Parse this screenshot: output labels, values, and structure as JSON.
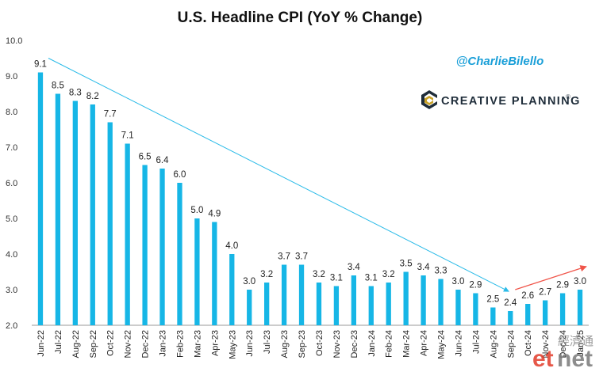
{
  "chart_data": {
    "type": "bar",
    "title": "U.S. Headline CPI (YoY % Change)",
    "categories": [
      "Jun-22",
      "Jul-22",
      "Aug-22",
      "Sep-22",
      "Oct-22",
      "Nov-22",
      "Dec-22",
      "Jan-23",
      "Feb-23",
      "Mar-23",
      "Apr-23",
      "May-23",
      "Jun-23",
      "Jul-23",
      "Aug-23",
      "Sep-23",
      "Oct-23",
      "Nov-23",
      "Dec-23",
      "Jan-24",
      "Feb-24",
      "Mar-24",
      "Apr-24",
      "May-24",
      "Jun-24",
      "Jul-24",
      "Aug-24",
      "Sep-24",
      "Oct-24",
      "Nov-24",
      "Dec-24",
      "Jan-25"
    ],
    "values": [
      9.1,
      8.5,
      8.3,
      8.2,
      7.7,
      7.1,
      6.5,
      6.4,
      6.0,
      5.0,
      4.9,
      4.0,
      3.0,
      3.2,
      3.7,
      3.7,
      3.2,
      3.1,
      3.4,
      3.1,
      3.2,
      3.5,
      3.4,
      3.3,
      3.0,
      2.9,
      2.5,
      2.4,
      2.6,
      2.7,
      2.9,
      3.0
    ],
    "data_labels": [
      "9.1",
      "8.5",
      "8.3",
      "8.2",
      "7.7",
      "7.1",
      "6.5",
      "6.4",
      "6.0",
      "5.0",
      "4.9",
      "4.0",
      "3.0",
      "3.2",
      "3.7",
      "3.7",
      "3.2",
      "3.1",
      "3.4",
      "3.1",
      "3.2",
      "3.5",
      "3.4",
      "3.3",
      "3.0",
      "2.9",
      "2.5",
      "2.4",
      "2.6",
      "2.7",
      "2.9",
      "3.0"
    ],
    "labeled": [
      true,
      true,
      true,
      true,
      true,
      true,
      true,
      true,
      true,
      true,
      true,
      true,
      true,
      true,
      true,
      true,
      true,
      true,
      true,
      true,
      true,
      true,
      true,
      true,
      true,
      true,
      true,
      true,
      true,
      true,
      true,
      true
    ],
    "ylim": [
      2.0,
      10.0
    ],
    "yticks": [
      "2.0",
      "3.0",
      "4.0",
      "5.0",
      "6.0",
      "7.0",
      "8.0",
      "9.0",
      "10.0"
    ],
    "xlabel": "",
    "ylabel": "",
    "grid": false,
    "bar_color": "#16b6e6",
    "trend_down": {
      "from_value": 9.5,
      "to_value": 2.95,
      "from_category": "Jun-22",
      "to_category": "Sep-24",
      "color": "#2bbbe8"
    },
    "trend_up": {
      "from_value": 3.0,
      "to_value": 3.65,
      "from_category": "Sep-24",
      "to_category": "Jan-25",
      "color": "#f0554a"
    }
  },
  "branding": {
    "handle": "@CharlieBilello",
    "company": "CREATIVE PLANNING",
    "company_suffix": "®",
    "handle_color": "#1a9fd8",
    "logo_colors": [
      "#1f2d3a",
      "#c9a227"
    ]
  },
  "watermark": {
    "et": "et",
    "net": "net",
    "chinese": "經濟通",
    "colors": [
      "#e23b2a",
      "#7a7a7a"
    ]
  }
}
